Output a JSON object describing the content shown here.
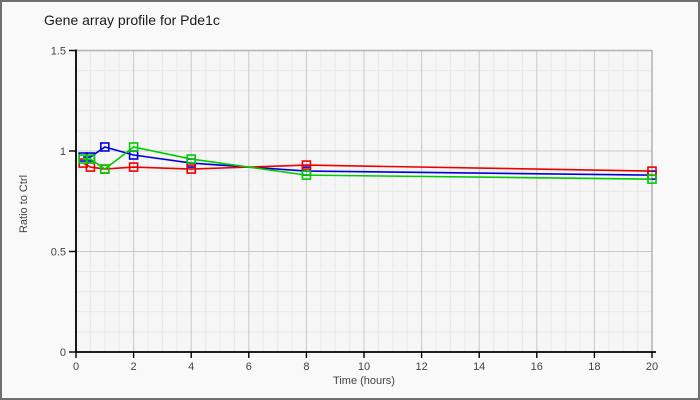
{
  "window": {
    "border_color": "#6f6f6f",
    "background": "#f9f9f9",
    "plot_background": "#f6f6f6"
  },
  "chart_data": {
    "type": "line",
    "title": "Gene array profile for Pde1c",
    "xlabel": "Time (hours)",
    "ylabel": "Ratio to Ctrl",
    "xlim": [
      0,
      20
    ],
    "ylim": [
      0,
      1.5
    ],
    "x_major_ticks": [
      0,
      2,
      4,
      6,
      8,
      10,
      12,
      14,
      16,
      18,
      20
    ],
    "y_major_ticks": [
      0,
      0.5,
      1,
      1.5
    ],
    "x_minor_step": 0.5,
    "y_minor_step": 0.1,
    "grid": "on",
    "legend": "none",
    "marker": "open-square",
    "x": [
      0.25,
      0.5,
      1,
      2,
      4,
      8,
      20
    ],
    "series": [
      {
        "name": "blue",
        "color": "#0000dd",
        "values": [
          0.97,
          0.97,
          1.02,
          0.98,
          0.94,
          0.9,
          0.88
        ]
      },
      {
        "name": "red",
        "color": "#ee0000",
        "values": [
          0.94,
          0.92,
          0.91,
          0.92,
          0.91,
          0.93,
          0.9
        ]
      },
      {
        "name": "green",
        "color": "#00cc00",
        "values": [
          0.96,
          0.96,
          0.91,
          1.02,
          0.96,
          0.88,
          0.86
        ]
      }
    ],
    "colors": {
      "axis": "#000000",
      "plot_border": "#b3b3b3",
      "grid_major": "#c9c9c9",
      "grid_minor": "#e9e9e9",
      "tick_label": "#444444"
    }
  }
}
